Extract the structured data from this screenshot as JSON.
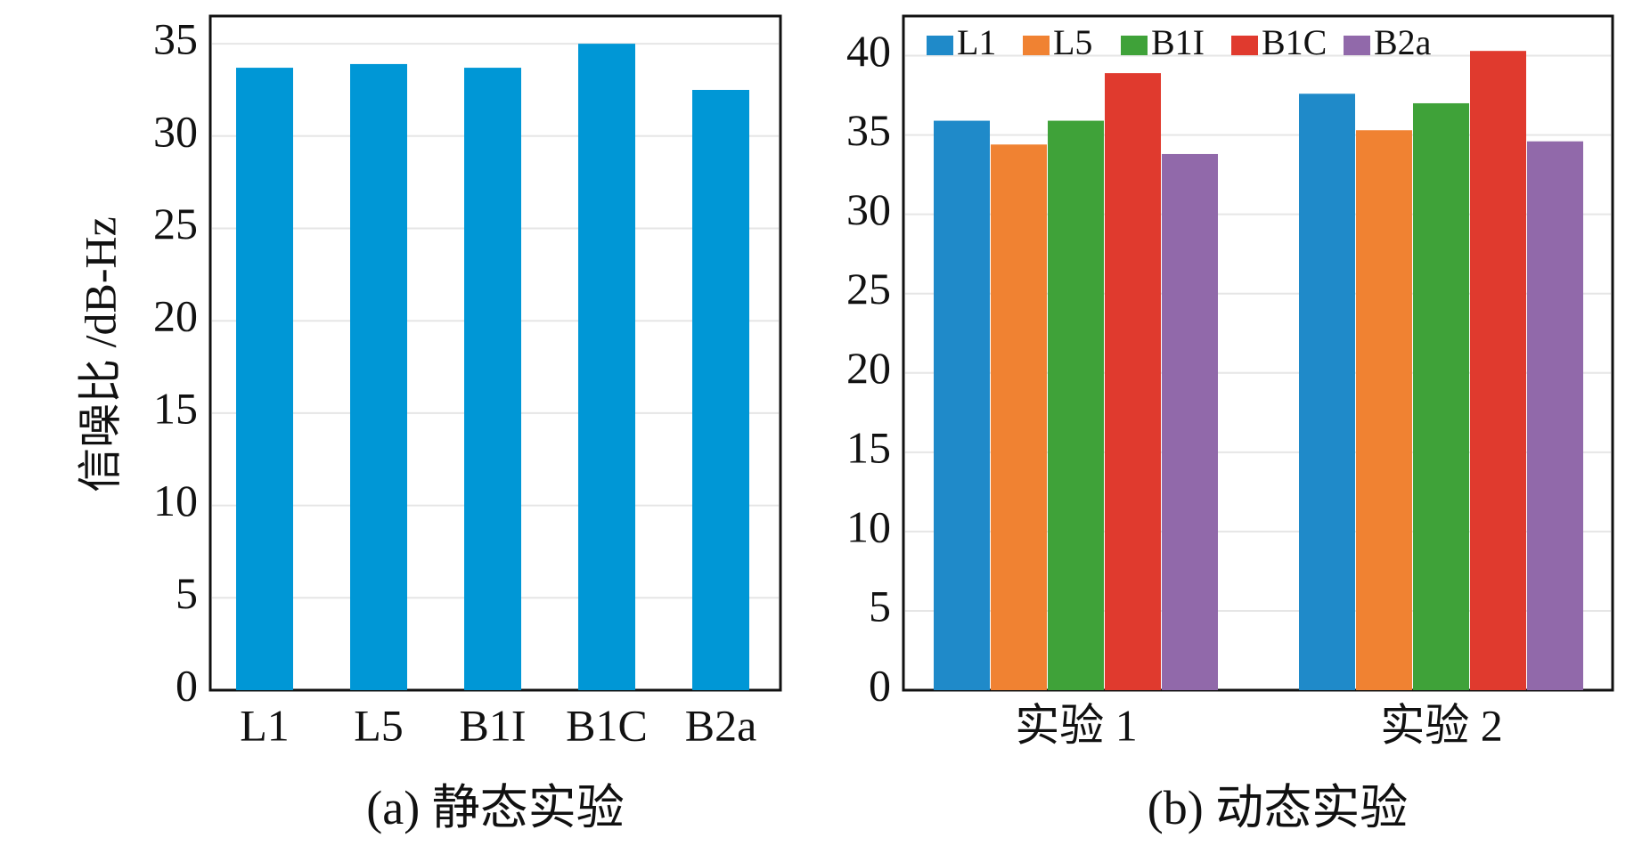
{
  "charts": {
    "static": {
      "caption": "(a) 静态实验",
      "ylabel": "信噪比 /dB-Hz"
    },
    "dynamic": {
      "caption": "(b) 动态实验"
    }
  },
  "colors": {
    "L1": "#1f8ac9",
    "L5": "#f08232",
    "B1I": "#3fa239",
    "B1C": "#e03a2e",
    "B2a": "#9169aa",
    "static_bar": "#0097d6",
    "grid": "#e6e6e6",
    "axis": "#111111"
  },
  "chart_data": [
    {
      "type": "bar",
      "title": "",
      "caption": "(a) 静态实验",
      "xlabel": "",
      "ylabel": "信噪比 /dB-Hz",
      "categories": [
        "L1",
        "L5",
        "B1I",
        "B1C",
        "B2a"
      ],
      "values": [
        33.7,
        33.9,
        33.7,
        35.0,
        32.5
      ],
      "ylim": [
        0,
        36.5
      ],
      "yticks": [
        "0",
        "5",
        "10",
        "15",
        "20",
        "25",
        "30",
        "35"
      ],
      "grid": true,
      "legend": "none"
    },
    {
      "type": "bar",
      "title": "",
      "caption": "(b) 动态实验",
      "xlabel": "",
      "ylabel": "",
      "categories": [
        "实验 1",
        "实验 2"
      ],
      "series": [
        {
          "name": "L1",
          "values": [
            35.9,
            37.6
          ]
        },
        {
          "name": "L5",
          "values": [
            34.4,
            35.3
          ]
        },
        {
          "name": "B1I",
          "values": [
            35.9,
            37.0
          ]
        },
        {
          "name": "B1C",
          "values": [
            38.9,
            40.3
          ]
        },
        {
          "name": "B2a",
          "values": [
            33.8,
            34.6
          ]
        }
      ],
      "ylim": [
        0,
        42.5
      ],
      "yticks": [
        "0",
        "5",
        "10",
        "15",
        "20",
        "25",
        "30",
        "35",
        "40"
      ],
      "grid": true,
      "legend": "top-left"
    }
  ]
}
